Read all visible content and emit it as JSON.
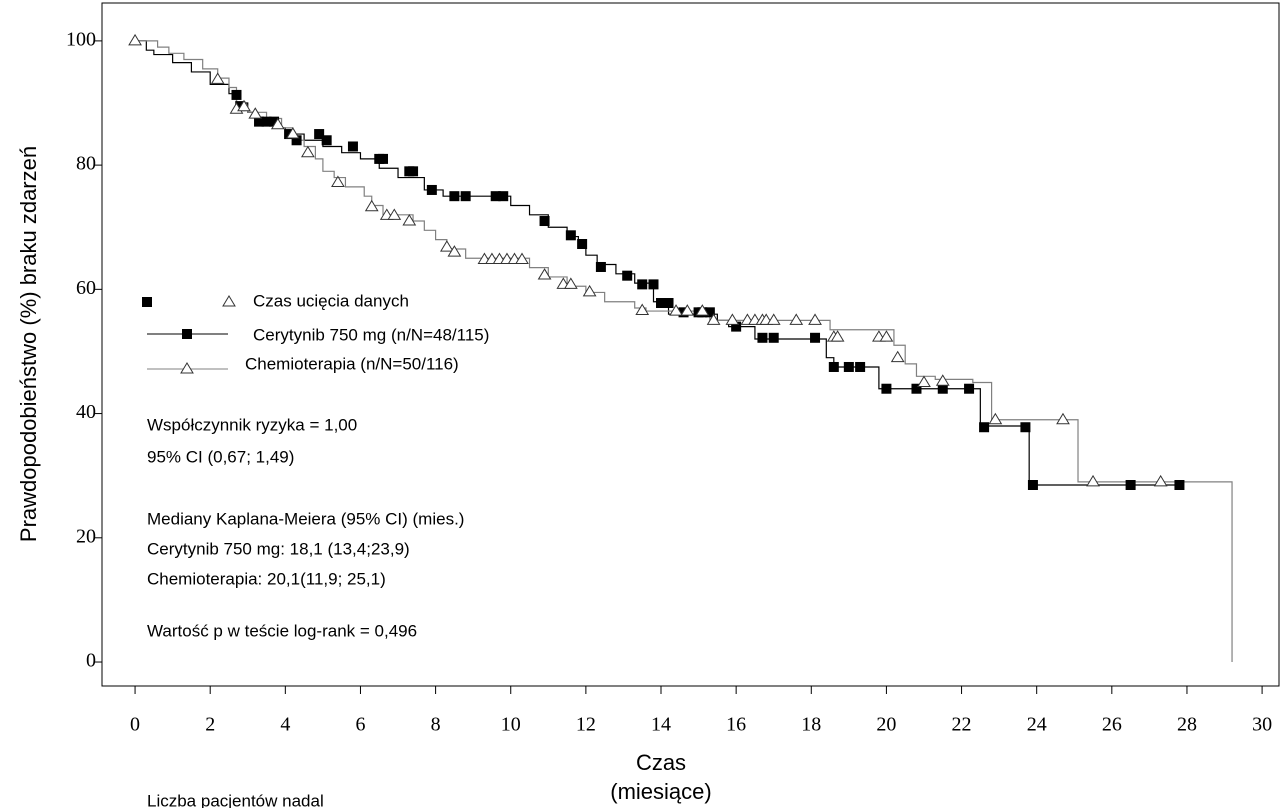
{
  "chart_data": {
    "type": "step",
    "y_label": "Prawdopodobieństwo (%) braku zdarzeń",
    "x_label": [
      "Czas",
      "(miesiące)"
    ],
    "censor_label": "Czas ucięcia danych",
    "xlim": [
      -0.88,
      30.45
    ],
    "ylim": [
      -3.86,
      106.1
    ],
    "xticks": [
      0,
      2,
      4,
      6,
      8,
      10,
      12,
      14,
      16,
      18,
      20,
      22,
      24,
      26,
      28,
      30
    ],
    "yticks": [
      0,
      20,
      40,
      60,
      80,
      100
    ],
    "series": [
      {
        "name": "Cerytynib 750 mg (n/N=48/115)",
        "color": "#000000",
        "marker": "square",
        "x": [
          0,
          0.3,
          0.5,
          1.0,
          1.5,
          2.0,
          2.5,
          2.7,
          3.0,
          3.2,
          3.8,
          4.0,
          4.5,
          5.0,
          5.5,
          6.0,
          6.5,
          7.0,
          7.7,
          8.2,
          10.0,
          10.5,
          11.0,
          11.5,
          11.8,
          12.0,
          12.3,
          12.8,
          13.3,
          13.8,
          14.2,
          15.5,
          15.8,
          16.5,
          18.4,
          18.6,
          19.8,
          22.5,
          23.8,
          27.8
        ],
        "values": [
          100,
          98.5,
          97.8,
          96.5,
          95,
          93,
          91.5,
          90,
          88.5,
          87,
          86,
          85,
          84,
          83,
          82,
          81,
          79.5,
          78,
          76,
          75,
          73.5,
          72,
          70,
          68.5,
          67,
          65.5,
          64,
          62.5,
          61,
          58,
          56,
          55,
          54,
          52,
          49,
          47.5,
          44,
          38,
          28.5,
          28.5
        ],
        "censored_x": [
          2.7,
          2.8,
          3.3,
          3.5,
          3.7,
          4.1,
          4.3,
          4.9,
          5.1,
          5.8,
          6.5,
          6.6,
          7.3,
          7.4,
          7.9,
          8.5,
          8.8,
          9.6,
          9.8,
          10.9,
          11.6,
          11.9,
          12.4,
          13.1,
          13.5,
          13.8,
          14.0,
          14.2,
          14.6,
          15.0,
          15.1,
          15.3,
          16.0,
          16.7,
          17.0,
          18.1,
          18.6,
          19.0,
          19.3,
          20.0,
          20.8,
          21.5,
          22.2,
          22.6,
          23.7,
          23.9,
          26.5,
          27.8
        ],
        "censored_values": [
          91.3,
          89.5,
          87,
          87,
          87,
          85,
          84,
          85,
          84,
          83,
          81,
          81,
          79,
          79,
          76,
          75,
          75,
          75,
          75,
          71,
          68.7,
          67.3,
          63.6,
          62.2,
          60.8,
          60.8,
          57.8,
          57.8,
          56.3,
          56.3,
          56.3,
          56.3,
          54,
          52.2,
          52.2,
          52.2,
          47.5,
          47.5,
          47.5,
          44,
          44,
          44,
          44,
          37.8,
          37.8,
          28.5,
          28.5,
          28.5
        ]
      },
      {
        "name": "Chemioterapia (n/N=50/116)",
        "color": "#808080",
        "marker": "triangle",
        "x": [
          0,
          0.6,
          0.9,
          1.3,
          1.8,
          2.2,
          2.5,
          2.7,
          3.0,
          3.5,
          3.9,
          4.2,
          4.5,
          4.8,
          5.0,
          5.3,
          5.6,
          6.1,
          6.3,
          6.6,
          7.4,
          7.7,
          8.0,
          8.3,
          8.8,
          10.5,
          11.0,
          11.5,
          12.0,
          12.5,
          13.3,
          13.6,
          15.3,
          18.5,
          20.2,
          20.5,
          20.8,
          21.3,
          22.3,
          22.8,
          25.1,
          29.2
        ],
        "values": [
          100,
          99,
          98,
          97,
          95.5,
          94,
          92.5,
          89.5,
          88.5,
          87.5,
          86,
          84,
          83,
          81,
          79,
          78,
          76.5,
          75,
          73.5,
          72,
          71,
          69.5,
          68,
          66.5,
          65,
          63.5,
          62,
          60.5,
          59.5,
          58,
          57,
          56.5,
          55,
          53.5,
          51,
          48,
          46,
          45.5,
          45,
          39,
          29,
          0
        ],
        "censored_x": [
          0,
          2.2,
          2.7,
          2.9,
          3.2,
          3.8,
          4.2,
          4.6,
          5.4,
          6.3,
          6.7,
          6.9,
          7.3,
          8.3,
          8.5,
          9.3,
          9.5,
          9.7,
          9.9,
          10.1,
          10.3,
          10.9,
          11.4,
          11.6,
          12.1,
          13.5,
          14.4,
          14.7,
          15.1,
          15.4,
          15.9,
          16.3,
          16.5,
          16.7,
          16.8,
          17.0,
          17.6,
          18.1,
          18.6,
          18.7,
          19.8,
          20.0,
          20.3,
          21.0,
          21.5,
          22.9,
          24.7,
          25.5,
          27.3
        ],
        "censored_values": [
          100,
          93.8,
          89,
          89.4,
          88.2,
          86.5,
          85,
          82,
          77.2,
          73.3,
          71.9,
          71.9,
          71,
          66.8,
          66,
          64.8,
          64.8,
          64.8,
          64.8,
          64.8,
          64.8,
          62.3,
          60.8,
          60.8,
          59.6,
          56.6,
          56.5,
          56.5,
          56.5,
          55,
          55,
          55,
          55,
          55,
          55,
          55,
          55,
          55,
          52.3,
          52.3,
          52.3,
          52.3,
          49,
          45,
          45.2,
          39,
          39,
          29,
          29
        ]
      }
    ],
    "annotations": [
      "Współczynnik ryzyka = 1,00",
      "95% CI (0,67; 1,49)",
      "Mediany Kaplana-Meiera (95% CI) (mies.)",
      "Cerytynib 750 mg: 18,1 (13,4;23,9)",
      "Chemioterapia: 20,1(11,9; 25,1)",
      "Wartość p w teście log-rank = 0,496"
    ],
    "footer": "Liczba pacjentów nadal"
  }
}
